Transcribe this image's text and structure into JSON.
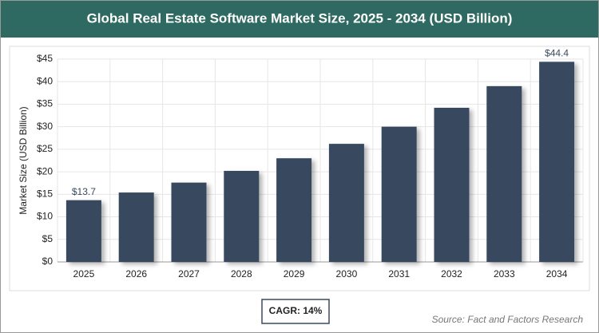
{
  "chart_data": {
    "type": "bar",
    "title": "Global Real Estate Software Market Size, 2025 - 2034 (USD Billion)",
    "y_label": "Market Size (USD Billion)",
    "categories": [
      "2025",
      "2026",
      "2027",
      "2028",
      "2029",
      "2030",
      "2031",
      "2032",
      "2033",
      "2034"
    ],
    "values": [
      13.7,
      15.4,
      17.6,
      20.2,
      23.0,
      26.2,
      30.0,
      34.2,
      39.0,
      44.4
    ],
    "value_labels": [
      "$13.7",
      null,
      null,
      null,
      null,
      null,
      null,
      null,
      null,
      "$44.4"
    ],
    "color": "#394a5f",
    "ylim": [
      0,
      45
    ],
    "yticks": [
      {
        "value": 0,
        "label": "$0"
      },
      {
        "value": 5,
        "label": "$5"
      },
      {
        "value": 10,
        "label": "$10"
      },
      {
        "value": 15,
        "label": "$15"
      },
      {
        "value": 20,
        "label": "$20"
      },
      {
        "value": 25,
        "label": "$25"
      },
      {
        "value": 30,
        "label": "$30"
      },
      {
        "value": 35,
        "label": "$35"
      },
      {
        "value": 40,
        "label": "$40"
      },
      {
        "value": 45,
        "label": "$45"
      }
    ],
    "grid": true,
    "cagr": "CAGR: 14%",
    "source": "Source: Fact and Factors Research"
  }
}
